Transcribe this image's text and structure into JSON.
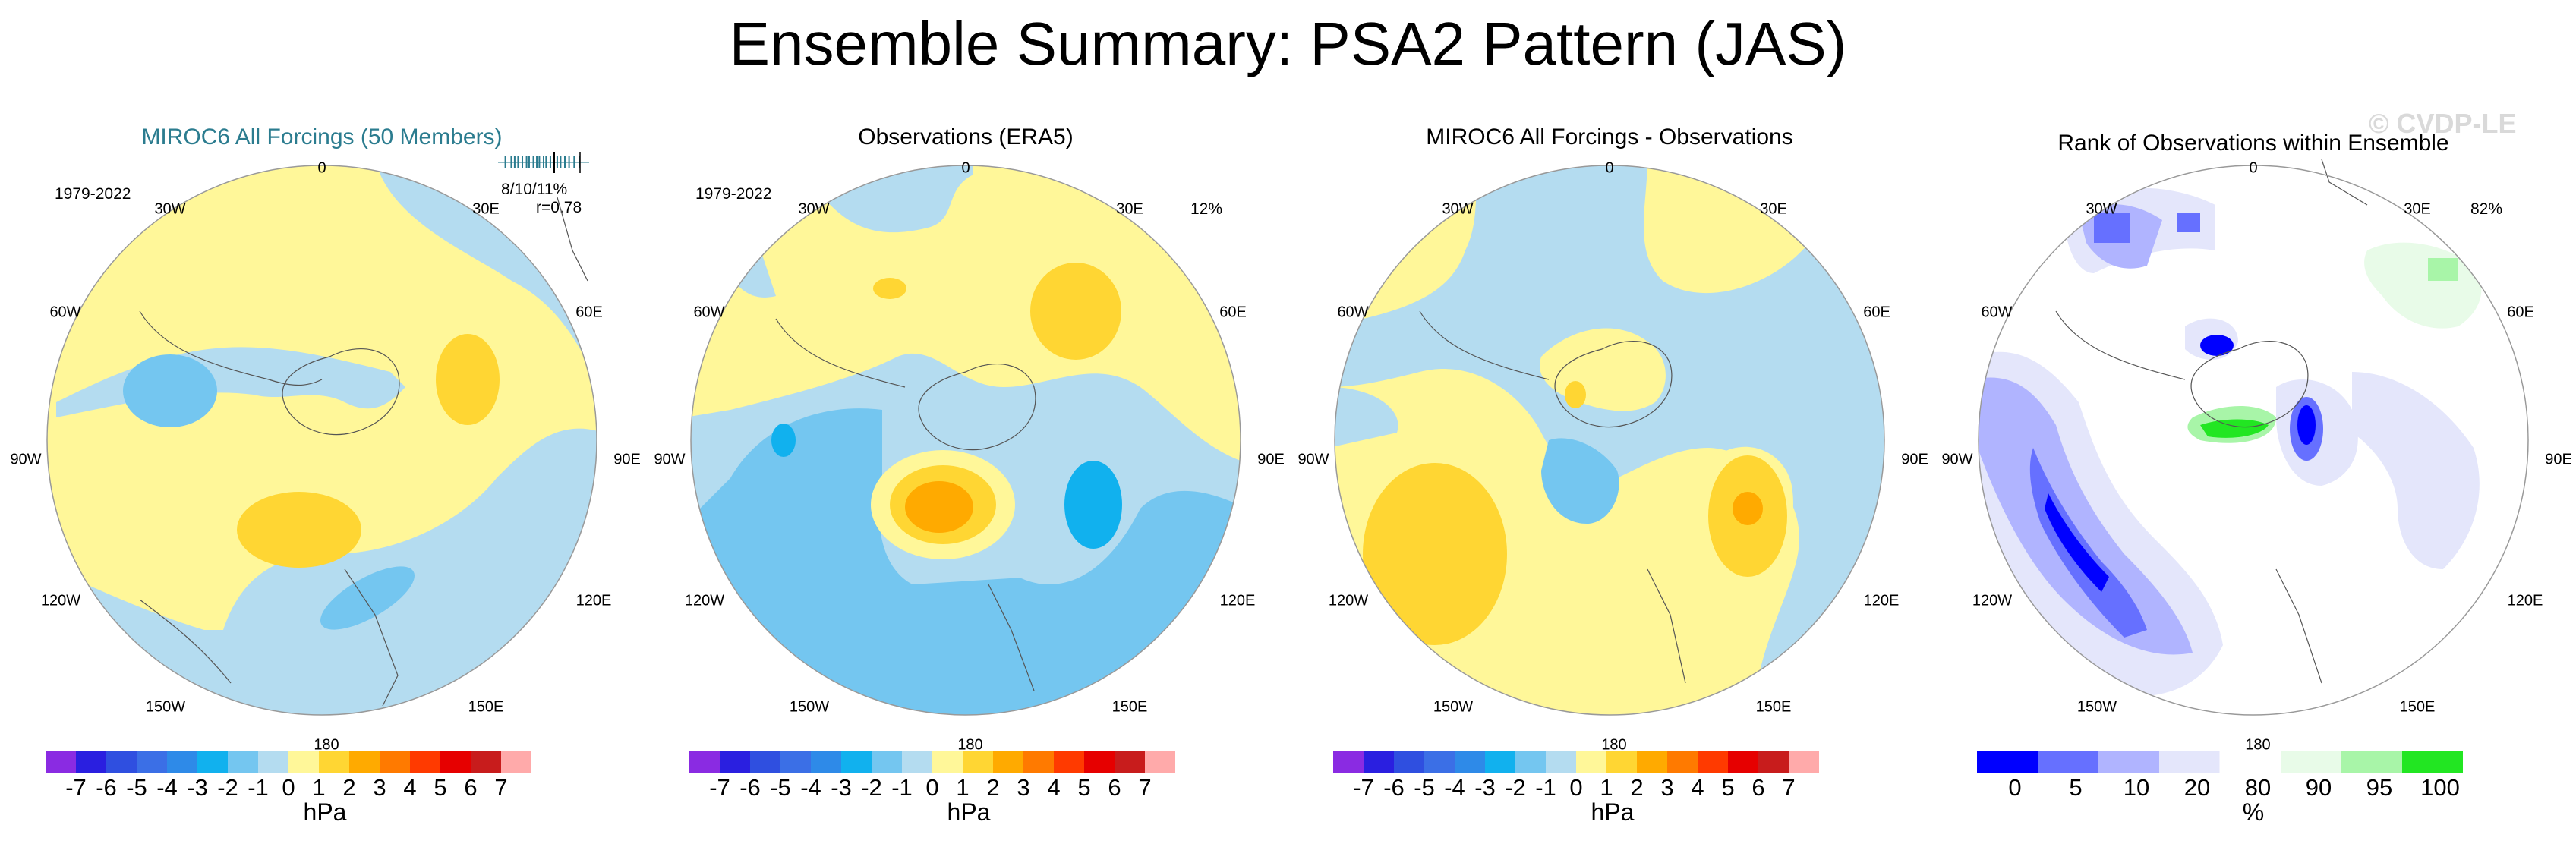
{
  "title": "Ensemble Summary: PSA2 Pattern (JAS)",
  "watermark": "© CVDP-LE",
  "lon_labels": {
    "top": "0",
    "tr1": "30E",
    "tr2": "60E",
    "right": "90E",
    "br1": "120E",
    "br2": "150E",
    "bottom": "180",
    "bl2": "150W",
    "bl1": "120W",
    "left": "90W",
    "tl2": "60W",
    "tl1": "30W"
  },
  "panels": [
    {
      "title": "MIROC6 All Forcings (50 Members)",
      "period": "1979-2022",
      "stats": "8/10/11%",
      "corr": "r=0.78",
      "spread_ticks": [
        0.05,
        0.12,
        0.16,
        0.2,
        0.25,
        0.3,
        0.33,
        0.38,
        0.42,
        0.45,
        0.5,
        0.53,
        0.58,
        0.62,
        0.66,
        0.7,
        0.75,
        0.8,
        0.86,
        0.92
      ]
    },
    {
      "title": "Observations (ERA5)",
      "period": "1979-2022",
      "pct": "12%"
    },
    {
      "title": "MIROC6 All Forcings - Observations"
    },
    {
      "title": "Rank of Observations within Ensemble",
      "pct": "82%"
    }
  ],
  "colorbar_hpa": {
    "unit": "hPa",
    "tick_labels": [
      "-7",
      "-6",
      "-5",
      "-4",
      "-3",
      "-2",
      "-1",
      "0",
      "1",
      "2",
      "3",
      "4",
      "5",
      "6",
      "7"
    ],
    "colors": [
      "#8a2be2",
      "#2a1fe0",
      "#2f4fe0",
      "#3b6fe6",
      "#2e8ae8",
      "#11b1ee",
      "#74c6f0",
      "#b4dcf0",
      "#fff799",
      "#ffd633",
      "#ffaa00",
      "#ff7a00",
      "#ff3a00",
      "#e60000",
      "#c81c1c",
      "#ffaaaa"
    ]
  },
  "colorbar_rank": {
    "unit": "%",
    "tick_labels": [
      "0",
      "5",
      "10",
      "20",
      "80",
      "90",
      "95",
      "100"
    ],
    "colors": [
      "#0000ff",
      "#6670ff",
      "#b0b4ff",
      "#e4e6fb",
      "#ffffff",
      "#e8fbe8",
      "#a8f5a8",
      "#22e622"
    ]
  },
  "colors": {
    "neg1": "#b4dcf0",
    "neg2": "#74c6f0",
    "neg3": "#11b1ee",
    "pos1": "#fff799",
    "pos2": "#ffd633",
    "pos3": "#ffaa00",
    "teal": "#2b7c8f"
  }
}
